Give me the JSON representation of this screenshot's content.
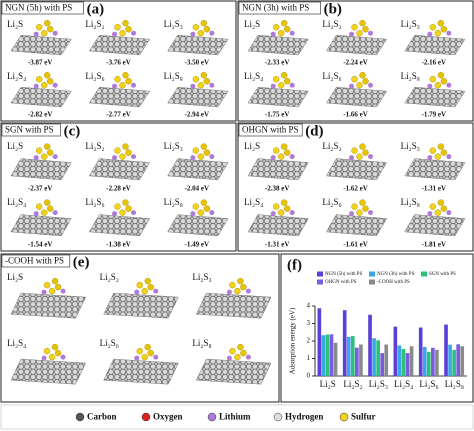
{
  "panels": [
    {
      "title": "NGN (5h) with PS",
      "letter": "(a)",
      "items": [
        {
          "label": "Li₂S",
          "energy": "-3.87 eV"
        },
        {
          "label": "Li₂S₂",
          "energy": "-3.76 eV"
        },
        {
          "label": "Li₂S₃",
          "energy": "-3.50 eV"
        },
        {
          "label": "Li₂S₄",
          "energy": "-2.82 eV"
        },
        {
          "label": "Li₂S₆",
          "energy": "-2.77 eV"
        },
        {
          "label": "Li₂S₈",
          "energy": "-2.94 eV"
        }
      ]
    },
    {
      "title": "NGN (3h) with PS",
      "letter": "(b)",
      "items": [
        {
          "label": "Li₂S",
          "energy": "-2.33 eV"
        },
        {
          "label": "Li₂S₂",
          "energy": "-2.24 eV"
        },
        {
          "label": "Li₂S₃",
          "energy": "-2.16 eV"
        },
        {
          "label": "Li₂S₄",
          "energy": "-1.75 eV"
        },
        {
          "label": "Li₂S₆",
          "energy": "-1.66 eV"
        },
        {
          "label": "Li₂S₈",
          "energy": "-1.79 eV"
        }
      ]
    },
    {
      "title": "SGN with PS",
      "letter": "(c)",
      "items": [
        {
          "label": "Li₂S",
          "energy": "-2.37 eV"
        },
        {
          "label": "Li₂S₂",
          "energy": "-2.28 eV"
        },
        {
          "label": "Li₂S₃",
          "energy": "-2.04 eV"
        },
        {
          "label": "Li₂S₄",
          "energy": "-1.54 eV"
        },
        {
          "label": "Li₂S₆",
          "energy": "-1.38 eV"
        },
        {
          "label": "Li₂S₈",
          "energy": "-1.49 eV"
        }
      ]
    },
    {
      "title": "OHGN with PS",
      "letter": "(d)",
      "items": [
        {
          "label": "Li₂S",
          "energy": "-2.38 eV"
        },
        {
          "label": "Li₂S₂",
          "energy": "-1.62 eV"
        },
        {
          "label": "Li₂S₃",
          "energy": "-1.31 eV"
        },
        {
          "label": "Li₂S₄",
          "energy": "-1.31 eV"
        },
        {
          "label": "Li₂S₆",
          "energy": "-1.61 eV"
        },
        {
          "label": "Li₂S₈",
          "energy": "-1.81 eV"
        }
      ]
    },
    {
      "title": "-COOH with PS",
      "letter": "(e)",
      "items": [
        {
          "label": "Li₂S"
        },
        {
          "label": "Li₂S₂"
        },
        {
          "label": "Li₂S₃"
        },
        {
          "label": "Li₂S₄"
        },
        {
          "label": "Li₂S₆"
        },
        {
          "label": "Li₂S₈"
        }
      ]
    }
  ],
  "chart_data": {
    "type": "bar",
    "letter": "(f)",
    "ylabel": "Adsorption energy (eV)",
    "categories": [
      "Li₂S",
      "Li₂S₂",
      "Li₂S₃",
      "Li₂S₄",
      "Li₂S₆",
      "Li₂S₈"
    ],
    "series": [
      {
        "name": "NGN (5h) with PS",
        "color": "#5b3fd6",
        "values": [
          3.87,
          3.76,
          3.5,
          2.82,
          2.77,
          2.94
        ]
      },
      {
        "name": "NGN (3h) with PS",
        "color": "#3aa6e8",
        "values": [
          2.33,
          2.24,
          2.16,
          1.75,
          1.66,
          1.79
        ]
      },
      {
        "name": "SGN with PS",
        "color": "#2cc07a",
        "values": [
          2.37,
          2.28,
          2.04,
          1.54,
          1.38,
          1.49
        ]
      },
      {
        "name": "OHGN with PS",
        "color": "#7a5ae0",
        "values": [
          2.38,
          1.62,
          1.31,
          1.31,
          1.61,
          1.81
        ]
      },
      {
        "name": "-COOH with PS",
        "color": "#8a8a8a",
        "values": [
          1.9,
          1.8,
          1.8,
          1.7,
          1.5,
          1.7
        ]
      }
    ],
    "ylim": [
      0,
      4
    ],
    "yticks": [
      0,
      1,
      2,
      3,
      4
    ]
  },
  "legend": [
    "Carbon",
    "Oxygen",
    "Lithium",
    "Hydrogen",
    "Sulfur"
  ]
}
